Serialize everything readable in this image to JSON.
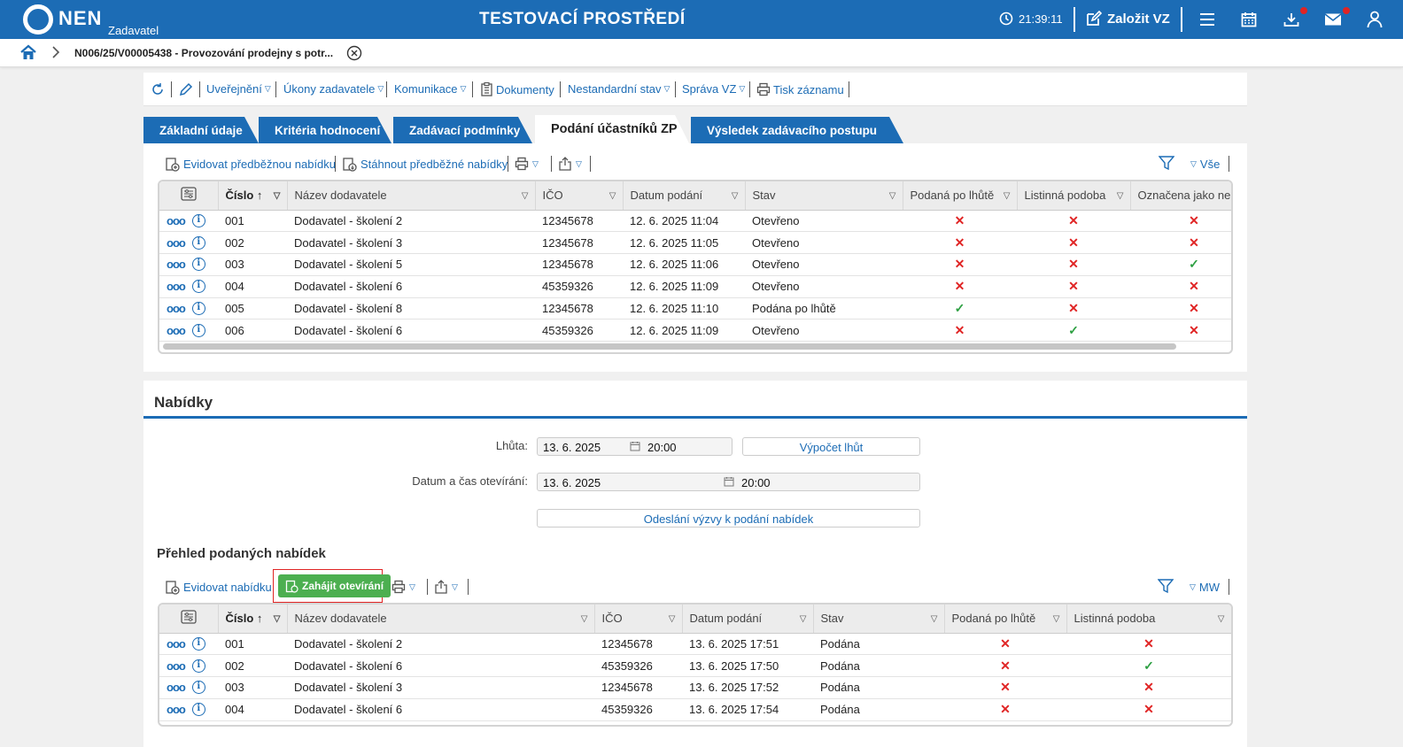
{
  "header": {
    "logo": "NEN",
    "logo_sub": "Zadavatel",
    "env_title": "TESTOVACÍ PROSTŘEDÍ",
    "time": "21:39:11",
    "create_vz": "Založit VZ"
  },
  "breadcrumb": {
    "title": "N006/25/V00005438 - Provozování prodejny s potr..."
  },
  "actions": {
    "items": [
      "Uveřejnění",
      "Úkony zadavatele",
      "Komunikace",
      "Dokumenty",
      "Nestandardní stav",
      "Správa VZ",
      "Tisk záznamu"
    ]
  },
  "tabs": [
    "Základní údaje",
    "Kritéria hodnocení",
    "Zadávací podmínky",
    "Podání účastníků ZP",
    "Výsledek zadávacího postupu"
  ],
  "prelim": {
    "toolbar": {
      "register": "Evidovat předběžnou nabídku",
      "download": "Stáhnout předběžné nabídky",
      "filter_label": "Vše"
    },
    "columns": [
      "Číslo",
      "Název dodavatele",
      "IČO",
      "Datum podání",
      "Stav",
      "Podaná po lhůtě",
      "Listinná podoba",
      "Označena jako nep"
    ],
    "rows": [
      {
        "num": "001",
        "name": "Dodavatel - školení 2",
        "ico": "12345678",
        "date": "12. 6. 2025 11:04",
        "state": "Otevřeno",
        "late": false,
        "paper": false,
        "marked": false
      },
      {
        "num": "002",
        "name": "Dodavatel - školení 3",
        "ico": "12345678",
        "date": "12. 6. 2025 11:05",
        "state": "Otevřeno",
        "late": false,
        "paper": false,
        "marked": false
      },
      {
        "num": "003",
        "name": "Dodavatel - školení 5",
        "ico": "12345678",
        "date": "12. 6. 2025 11:06",
        "state": "Otevřeno",
        "late": false,
        "paper": false,
        "marked": true
      },
      {
        "num": "004",
        "name": "Dodavatel - školení 6",
        "ico": "45359326",
        "date": "12. 6. 2025 11:09",
        "state": "Otevřeno",
        "late": false,
        "paper": false,
        "marked": false
      },
      {
        "num": "005",
        "name": "Dodavatel - školení 8",
        "ico": "12345678",
        "date": "12. 6. 2025 11:10",
        "state": "Podána po lhůtě",
        "late": true,
        "paper": false,
        "marked": false
      },
      {
        "num": "006",
        "name": "Dodavatel - školení 6",
        "ico": "45359326",
        "date": "12. 6. 2025 11:09",
        "state": "Otevřeno",
        "late": false,
        "paper": true,
        "marked": false
      }
    ]
  },
  "offers": {
    "title": "Nabídky",
    "deadline_label": "Lhůta:",
    "deadline_date": "13. 6. 2025",
    "deadline_time": "20:00",
    "calc_button": "Výpočet lhůt",
    "opening_label": "Datum a čas otevírání:",
    "opening_date": "13. 6. 2025",
    "opening_time": "20:00",
    "send_button": "Odeslání výzvy k podání nabídek",
    "overview_title": "Přehled podaných nabídek",
    "toolbar": {
      "register": "Evidovat nabídku",
      "start_opening": "Zahájit otevírání",
      "filter_label": "MW"
    },
    "columns": [
      "Číslo",
      "Název dodavatele",
      "IČO",
      "Datum podání",
      "Stav",
      "Podaná po lhůtě",
      "Listinná podoba"
    ],
    "rows": [
      {
        "num": "001",
        "name": "Dodavatel - školení 2",
        "ico": "12345678",
        "date": "13. 6. 2025 17:51",
        "state": "Podána",
        "late": false,
        "paper": false
      },
      {
        "num": "002",
        "name": "Dodavatel - školení 6",
        "ico": "45359326",
        "date": "13. 6. 2025 17:50",
        "state": "Podána",
        "late": false,
        "paper": true
      },
      {
        "num": "003",
        "name": "Dodavatel - školení 3",
        "ico": "12345678",
        "date": "13. 6. 2025 17:52",
        "state": "Podána",
        "late": false,
        "paper": false
      },
      {
        "num": "004",
        "name": "Dodavatel - školení 6",
        "ico": "45359326",
        "date": "13. 6. 2025 17:54",
        "state": "Podána",
        "late": false,
        "paper": false
      }
    ]
  }
}
